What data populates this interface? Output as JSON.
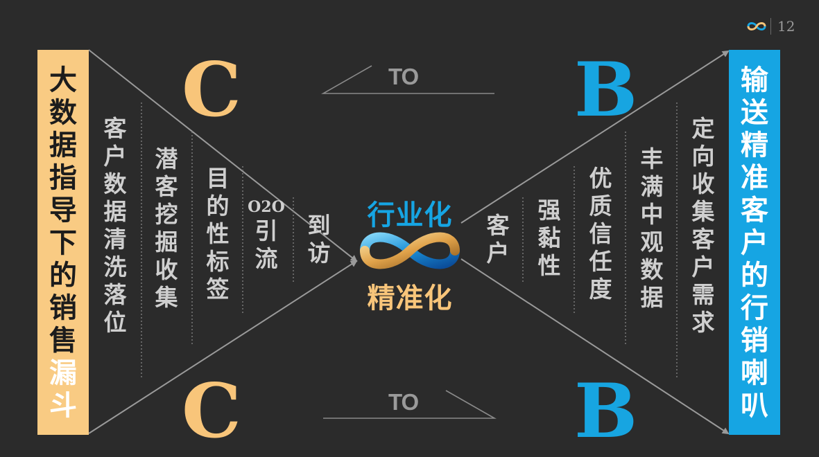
{
  "page_number": "12",
  "left_funnel": {
    "chars": [
      "大",
      "数",
      "据",
      "指",
      "导",
      "下",
      "的",
      "销",
      "售"
    ],
    "highlight_chars": [
      "漏",
      "斗"
    ]
  },
  "right_funnel": {
    "chars": [
      "输",
      "送",
      "精",
      "准",
      "客",
      "户",
      "的",
      "行",
      "销",
      "喇",
      "叭"
    ]
  },
  "letters": {
    "c_top": "C",
    "c_bottom": "C",
    "b_top": "B",
    "b_bottom": "B"
  },
  "to_top": "TO",
  "to_bottom": "TO",
  "center": {
    "top": "行业化",
    "bottom": "精准化"
  },
  "left_columns": [
    [
      "客",
      "户",
      "数",
      "据",
      "清",
      "洗",
      "落",
      "位"
    ],
    [
      "潜",
      "客",
      "挖",
      "掘",
      "收",
      "集"
    ],
    [
      "目",
      "的",
      "性",
      "标",
      "签"
    ],
    [
      "O2O",
      "引",
      "流"
    ],
    [
      "到",
      "访"
    ]
  ],
  "right_columns": [
    [
      "客",
      "户"
    ],
    [
      "强",
      "黏",
      "性"
    ],
    [
      "优",
      "质",
      "信",
      "任",
      "度"
    ],
    [
      "丰",
      "满",
      "中",
      "观",
      "数",
      "据"
    ],
    [
      "定",
      "向",
      "收",
      "集",
      "客",
      "户",
      "需",
      "求"
    ]
  ],
  "colors": {
    "background": "#2b2b2b",
    "gold": "#f8c57a",
    "blue": "#16a5e3",
    "text_gray": "#cfcfcf"
  }
}
